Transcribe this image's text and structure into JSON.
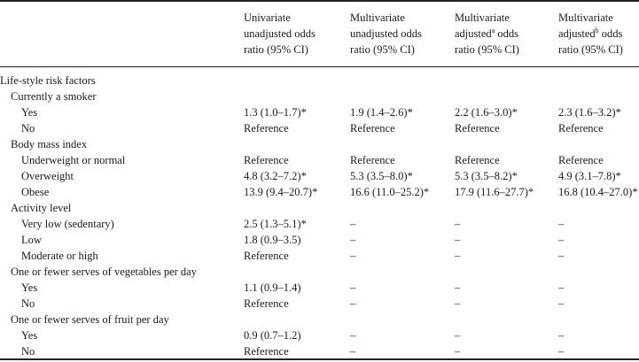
{
  "table": {
    "headers": [
      {
        "lines": [
          "Univariate",
          "unadjusted odds",
          "ratio (95% CI)"
        ],
        "sup": ""
      },
      {
        "lines": [
          "Multivariate",
          "unadjusted odds",
          "ratio (95% CI)"
        ],
        "sup": ""
      },
      {
        "lines": [
          "Multivariate",
          "adjusted",
          "odds",
          "ratio (95% CI)"
        ],
        "sup": "a"
      },
      {
        "lines": [
          "Multivariate",
          "adjusted",
          "odds",
          "ratio (95% CI)"
        ],
        "sup": "b"
      }
    ],
    "rows": [
      {
        "label": "Life-style risk factors",
        "level": 0,
        "cells": [
          "",
          "",
          "",
          ""
        ]
      },
      {
        "label": "Currently a smoker",
        "level": 1,
        "cells": [
          "",
          "",
          "",
          ""
        ]
      },
      {
        "label": "Yes",
        "level": 2,
        "cells": [
          "1.3 (1.0–1.7)*",
          "1.9 (1.4–2.6)*",
          "2.2 (1.6–3.0)*",
          "2.3 (1.6–3.2)*"
        ]
      },
      {
        "label": "No",
        "level": 2,
        "cells": [
          "Reference",
          "Reference",
          "Reference",
          "Reference"
        ]
      },
      {
        "label": "Body mass index",
        "level": 1,
        "cells": [
          "",
          "",
          "",
          ""
        ]
      },
      {
        "label": "Underweight or normal",
        "level": 2,
        "cells": [
          "Reference",
          "Reference",
          "Reference",
          "Reference"
        ]
      },
      {
        "label": "Overweight",
        "level": 2,
        "cells": [
          "4.8 (3.2–7.2)*",
          "5.3 (3.5–8.0)*",
          "5.3 (3.5–8.2)*",
          "4.9 (3.1–7.8)*"
        ]
      },
      {
        "label": "Obese",
        "level": 2,
        "cells": [
          "13.9 (9.4–20.7)*",
          "16.6 (11.0–25.2)*",
          "17.9 (11.6–27.7)*",
          "16.8 (10.4–27.0)*"
        ]
      },
      {
        "label": "Activity level",
        "level": 1,
        "cells": [
          "",
          "",
          "",
          ""
        ]
      },
      {
        "label": "Very low (sedentary)",
        "level": 2,
        "cells": [
          "2.5 (1.3–5.1)*",
          "–",
          "–",
          "–"
        ]
      },
      {
        "label": "Low",
        "level": 2,
        "cells": [
          "1.8 (0.9–3.5)",
          "–",
          "–",
          "–"
        ]
      },
      {
        "label": "Moderate or high",
        "level": 2,
        "cells": [
          "Reference",
          "–",
          "–",
          "–"
        ]
      },
      {
        "label": "One or fewer serves of vegetables per day",
        "level": 1,
        "cells": [
          "",
          "",
          "",
          ""
        ]
      },
      {
        "label": "Yes",
        "level": 2,
        "cells": [
          "1.1 (0.9–1.4)",
          "–",
          "–",
          "–"
        ]
      },
      {
        "label": "No",
        "level": 2,
        "cells": [
          "Reference",
          "–",
          "–",
          "–"
        ]
      },
      {
        "label": "One or fewer serves of fruit per day",
        "level": 1,
        "cells": [
          "",
          "",
          "",
          ""
        ]
      },
      {
        "label": "Yes",
        "level": 2,
        "cells": [
          "0.9 (0.7–1.2)",
          "–",
          "–",
          "–"
        ]
      },
      {
        "label": "No",
        "level": 2,
        "cells": [
          "Reference",
          "–",
          "–",
          "–"
        ]
      }
    ]
  }
}
